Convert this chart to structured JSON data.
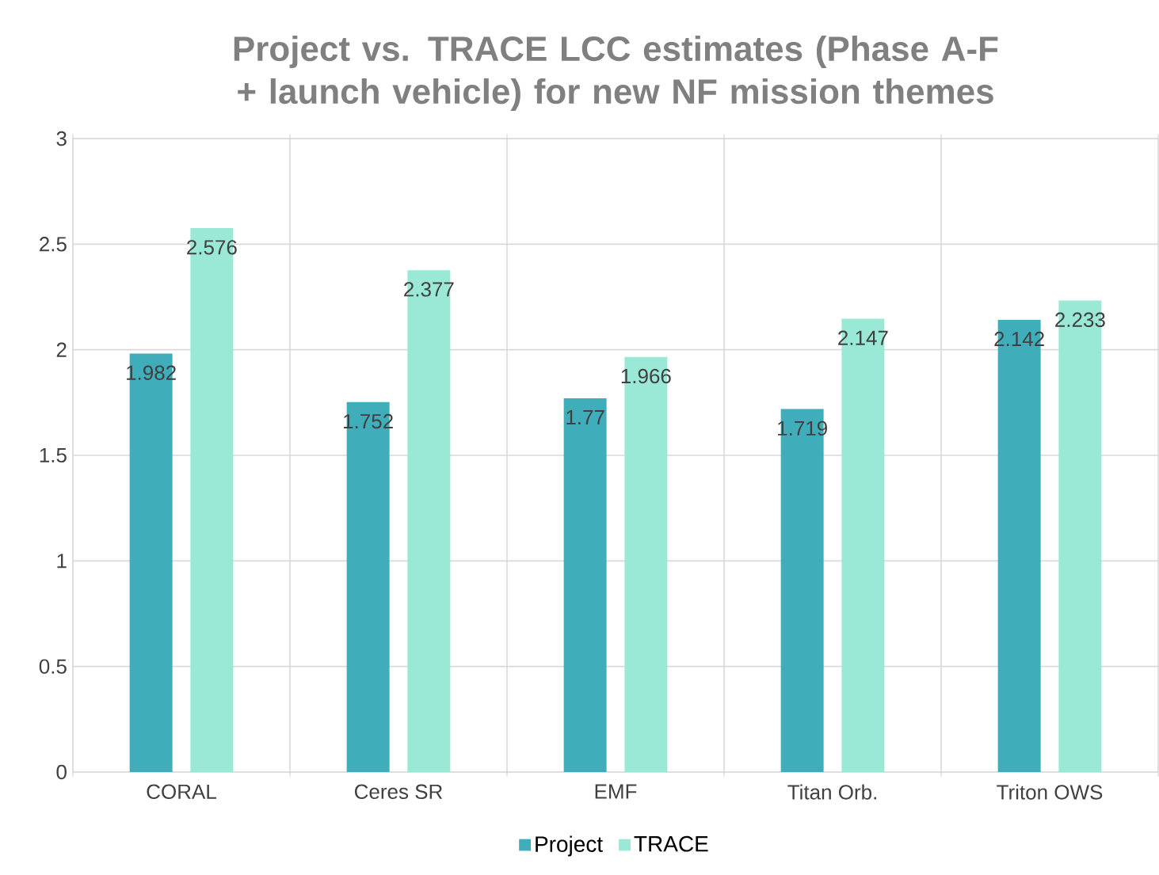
{
  "chart_data": {
    "type": "bar",
    "title": "Project vs. TRACE LCC estimates (Phase A-F + launch vehicle) for new NF mission themes",
    "categories": [
      "CORAL",
      "Ceres SR",
      "EMF",
      "Titan Orb.",
      "Triton OWS"
    ],
    "series": [
      {
        "name": "Project",
        "color": "#40adbb",
        "values": [
          1.982,
          1.752,
          1.77,
          1.719,
          2.142
        ]
      },
      {
        "name": "TRACE",
        "color": "#9ae8d6",
        "values": [
          2.576,
          2.377,
          1.966,
          2.147,
          2.233
        ]
      }
    ],
    "ylim": [
      0,
      3
    ],
    "yticks": [
      0,
      0.5,
      1,
      1.5,
      2,
      2.5,
      3
    ],
    "grid": true,
    "legend": "bottom",
    "data_labels": true
  }
}
